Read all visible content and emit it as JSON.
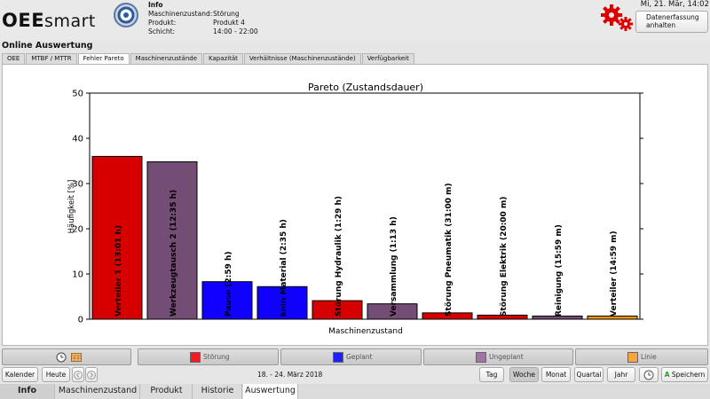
{
  "header": {
    "logo_bold": "OEE",
    "logo_light": "smart",
    "info_title": "Info",
    "info_rows": [
      {
        "key": "Maschinenzustand:",
        "value": "Störung"
      },
      {
        "key": "Produkt:",
        "value": "Produkt 4"
      },
      {
        "key": "Schicht:",
        "value": "14:00 - 22:00"
      }
    ],
    "datetime": "Mi, 21. Mär, 14:02",
    "datenerfassung_line1": "Datenerfassung",
    "datenerfassung_line2": "anhalten",
    "section_title": "Online Auswertung"
  },
  "tabs": [
    {
      "label": "OEE",
      "active": false
    },
    {
      "label": "MTBF / MTTR",
      "active": false
    },
    {
      "label": "Fehler Pareto",
      "active": true
    },
    {
      "label": "Maschinenzustände",
      "active": false
    },
    {
      "label": "Kapazität",
      "active": false
    },
    {
      "label": "Verhältnisse (Maschinenzustände)",
      "active": false
    },
    {
      "label": "Verfügbarkeit",
      "active": false
    }
  ],
  "chart_data": {
    "type": "bar",
    "title": "Pareto (Zustandsdauer)",
    "xlabel": "Maschinenzustand",
    "ylabel": "Häufigkeit [%]",
    "ylim": [
      0,
      50
    ],
    "yticks": [
      0,
      10,
      20,
      30,
      40,
      50
    ],
    "grid": false,
    "categories": [
      "Verteiler 1 (13:01 h)",
      "Werkzeugtausch 2 (12:35 h)",
      "Pause (2:59 h)",
      "kein Material (2:35 h)",
      "Störung Hydraulik (1:29 h)",
      "Versammlung (1:13 h)",
      "Störung Pneumatik (31:00 m)",
      "Störung Elektrik (20:00 m)",
      "Reinigung (15:59 m)",
      "Verteiler (14:59 m)"
    ],
    "values": [
      36.0,
      34.8,
      8.3,
      7.2,
      4.1,
      3.4,
      1.4,
      0.9,
      0.7,
      0.7
    ],
    "colors": [
      "#d60000",
      "#744d74",
      "#0f00ff",
      "#0f00ff",
      "#d60000",
      "#744d74",
      "#d60000",
      "#d60000",
      "#744d74",
      "#f09400"
    ]
  },
  "legend": {
    "items": [
      {
        "label": "Störung",
        "color": "#ee1c24"
      },
      {
        "label": "Geplant",
        "color": "#1e1eff"
      },
      {
        "label": "Ungeplant",
        "color": "#a374a3"
      },
      {
        "label": "Linie",
        "color": "#f5a640"
      }
    ],
    "icons": [
      "clock-icon",
      "calendar-icon"
    ]
  },
  "toolbar": {
    "kalender": "Kalender",
    "heute": "Heute",
    "date_range": "18. - 24. März 2018",
    "tag": "Tag",
    "woche": "Woche",
    "monat": "Monat",
    "quartal": "Quartal",
    "jahr": "Jahr",
    "speichern": "Speichern"
  },
  "bottom_nav": {
    "info": "Info",
    "maschinenzustand": "Maschinenzustand",
    "produkt": "Produkt",
    "historie": "Historie",
    "auswertung": "Auswertung"
  }
}
